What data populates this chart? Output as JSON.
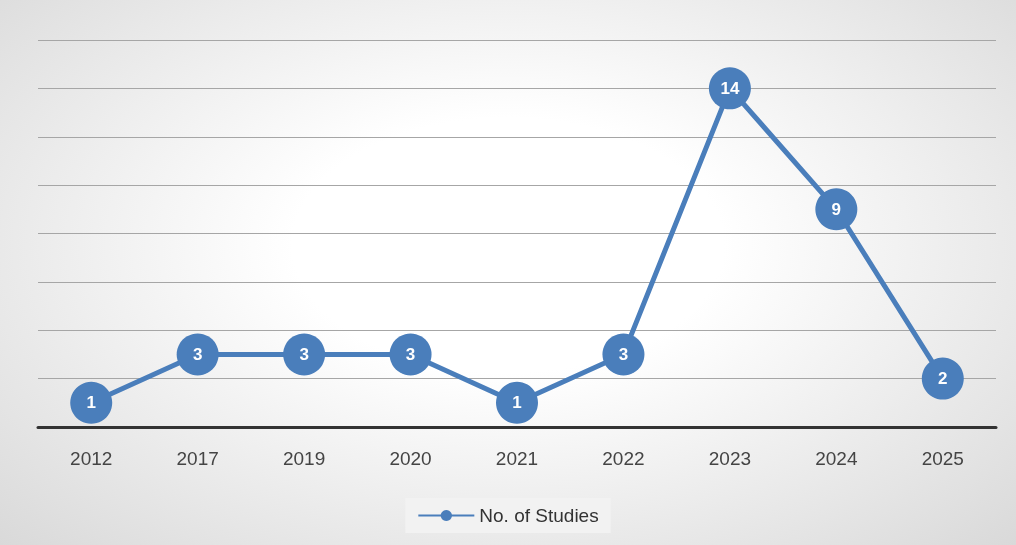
{
  "chart_data": {
    "type": "line",
    "categories": [
      "2012",
      "2017",
      "2019",
      "2020",
      "2021",
      "2022",
      "2023",
      "2024",
      "2025"
    ],
    "series": [
      {
        "name": "No. of Studies",
        "color": "#4a7ebb",
        "values": [
          1,
          3,
          3,
          3,
          1,
          3,
          14,
          9,
          2
        ]
      }
    ],
    "ylim": [
      0,
      16
    ],
    "yticks": [
      {
        "value": 0,
        "label": null
      },
      {
        "value": 2,
        "label": null
      },
      {
        "value": 4,
        "label": null
      },
      {
        "value": 6,
        "label": null
      },
      {
        "value": 8,
        "label": null
      },
      {
        "value": 10,
        "label": null
      },
      {
        "value": 12,
        "label": null
      },
      {
        "value": 14,
        "label": null
      },
      {
        "value": 16,
        "label": null
      }
    ],
    "tick_labels": "x",
    "grid": "y",
    "data_labels": true,
    "marker": "circle",
    "legend": "bottom"
  }
}
